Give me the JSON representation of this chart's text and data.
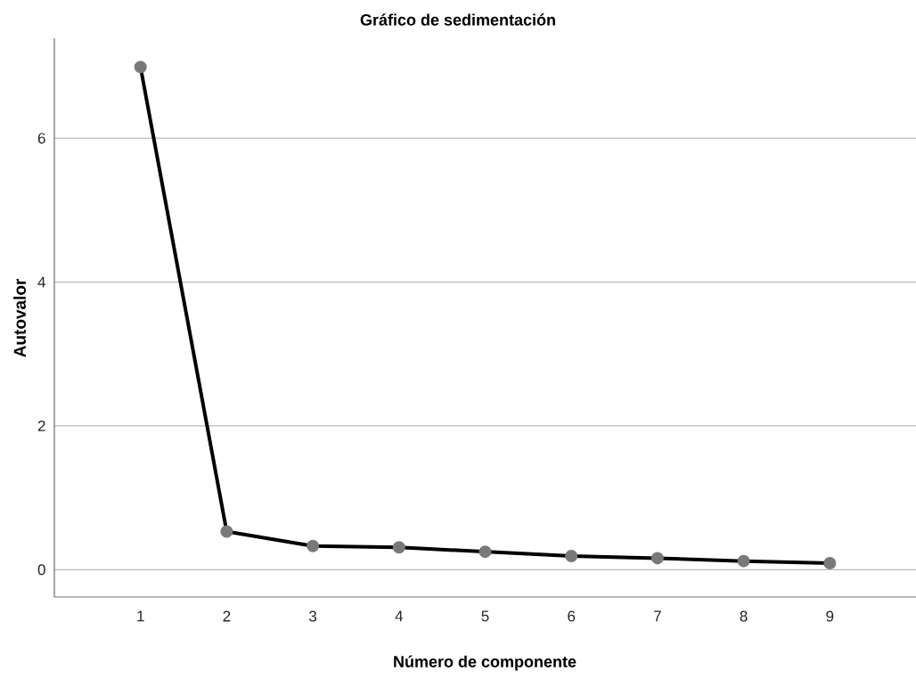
{
  "chart_data": {
    "type": "line",
    "title": "Gráfico de sedimentación",
    "xlabel": "Número de componente",
    "ylabel": "Autovalor",
    "x": [
      1,
      2,
      3,
      4,
      5,
      6,
      7,
      8,
      9
    ],
    "series": [
      {
        "color": "#000000",
        "values": [
          6.99,
          0.53,
          0.33,
          0.31,
          0.25,
          0.19,
          0.16,
          0.12,
          0.09
        ]
      }
    ],
    "xlim": [
      0,
      10
    ],
    "xticks": [
      1,
      2,
      3,
      4,
      5,
      6,
      7,
      8,
      9
    ],
    "ylim": [
      -0.38,
      7.39
    ],
    "yticks": [
      0,
      2,
      4,
      6
    ],
    "grid": "y",
    "marker": "circle",
    "line_style": "solid"
  }
}
